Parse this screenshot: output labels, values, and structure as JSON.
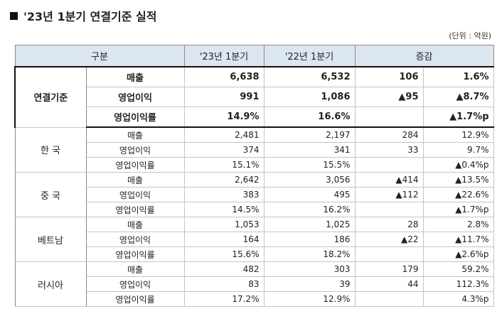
{
  "header": {
    "title": "'23년 1분기 연결기준 실적",
    "unit": "(단위 : 억원)"
  },
  "table": {
    "columns": [
      "구분",
      "'23년 1분기",
      "'22년 1분기",
      "증감"
    ],
    "groups": [
      {
        "name": "연결기준",
        "rows": [
          [
            "매출",
            "6,638",
            "6,532",
            "106",
            "1.6%"
          ],
          [
            "영업이익",
            "991",
            "1,086",
            "▲95",
            "▲8.7%"
          ],
          [
            "영업이익률",
            "14.9%",
            "16.6%",
            null,
            "▲1.7%p"
          ]
        ]
      },
      {
        "name": "한 국",
        "rows": [
          [
            "매출",
            "2,481",
            "2,197",
            "284",
            "12.9%"
          ],
          [
            "영업이익",
            "374",
            "341",
            "33",
            "9.7%"
          ],
          [
            "영업이익률",
            "15.1%",
            "15.5%",
            null,
            "▲0.4%p"
          ]
        ]
      },
      {
        "name": "중 국",
        "rows": [
          [
            "매출",
            "2,642",
            "3,056",
            "▲414",
            "▲13.5%"
          ],
          [
            "영업이익",
            "383",
            "495",
            "▲112",
            "▲22.6%"
          ],
          [
            "영업이익률",
            "14.5%",
            "16.2%",
            null,
            "▲1.7%p"
          ]
        ]
      },
      {
        "name": "베트남",
        "rows": [
          [
            "매출",
            "1,053",
            "1,025",
            "28",
            "2.8%"
          ],
          [
            "영업이익",
            "164",
            "186",
            "▲22",
            "▲11.7%"
          ],
          [
            "영업이익률",
            "15.6%",
            "18.2%",
            null,
            "▲2.6%p"
          ]
        ]
      },
      {
        "name": "러시아",
        "rows": [
          [
            "매출",
            "482",
            "303",
            "179",
            "59.2%"
          ],
          [
            "영업이익",
            "83",
            "39",
            "44",
            "112.3%"
          ],
          [
            "영업이익률",
            "17.2%",
            "12.9%",
            null,
            "4.3%p"
          ]
        ]
      }
    ]
  }
}
